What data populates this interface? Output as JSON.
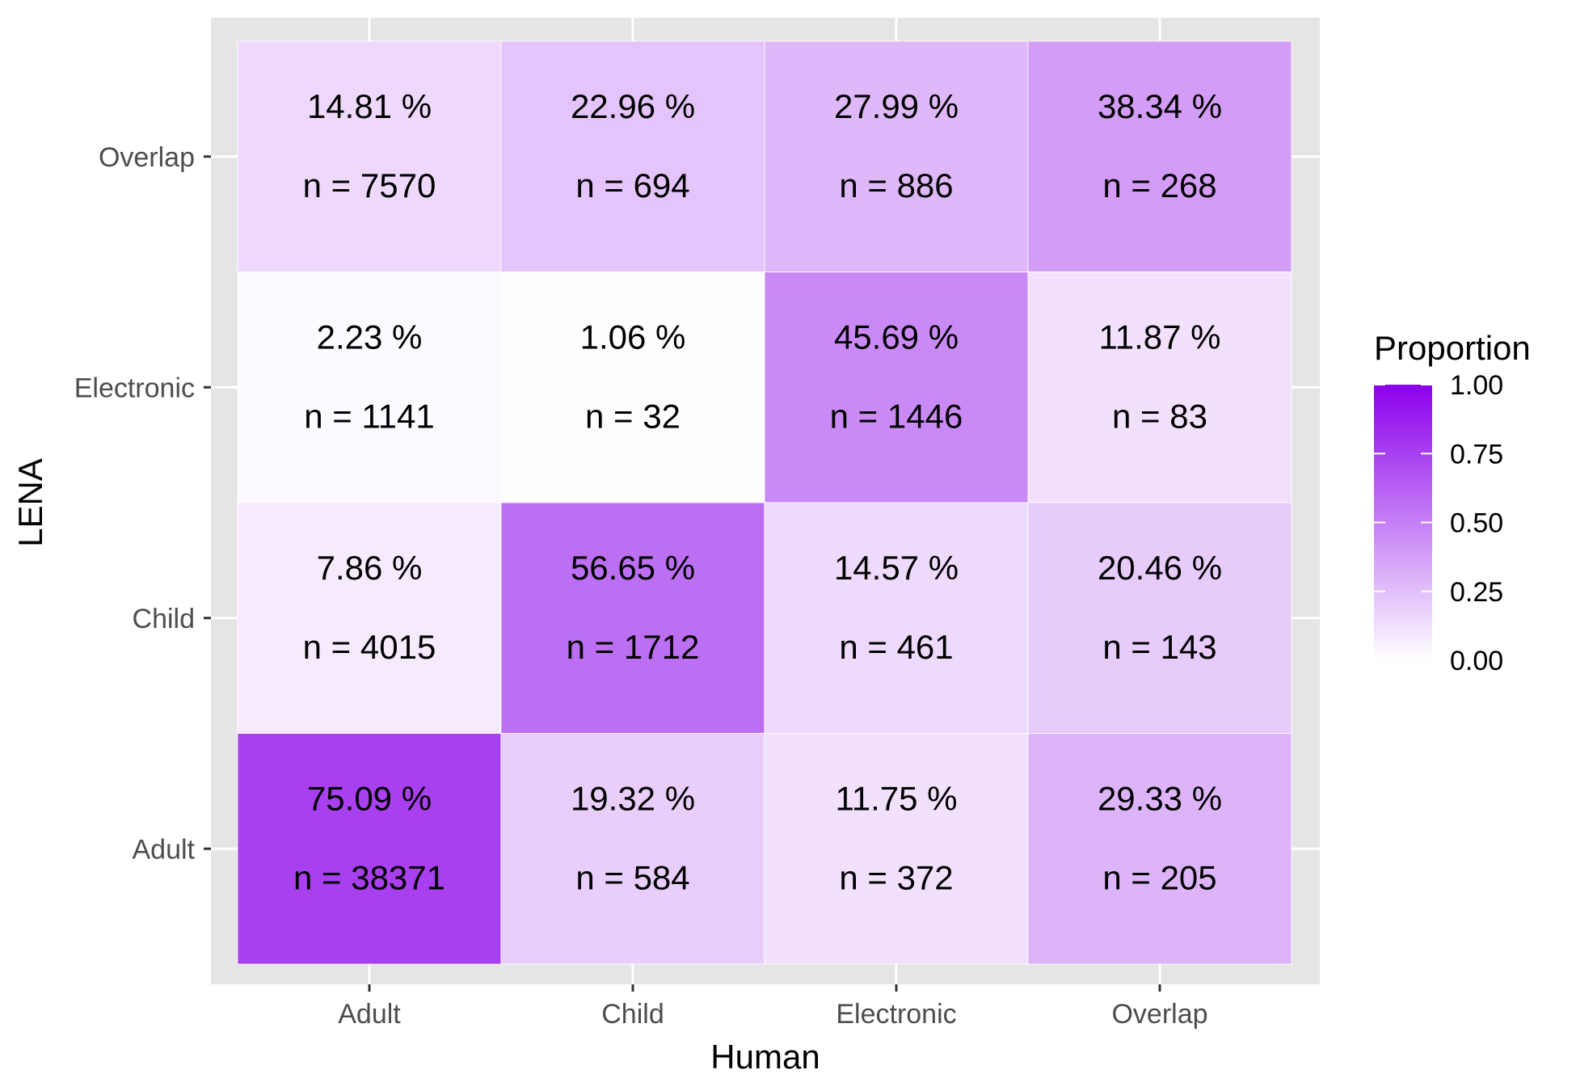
{
  "chart_data": {
    "type": "heatmap",
    "xlabel": "Human",
    "ylabel": "LENA",
    "x_categories": [
      "Adult",
      "Child",
      "Electronic",
      "Overlap"
    ],
    "y_categories": [
      "Adult",
      "Child",
      "Electronic",
      "Overlap"
    ],
    "cells": [
      {
        "x": "Adult",
        "y": "Overlap",
        "proportion": 0.1481,
        "pct_label": "14.81 %",
        "n_label": "n = 7570"
      },
      {
        "x": "Child",
        "y": "Overlap",
        "proportion": 0.2296,
        "pct_label": "22.96 %",
        "n_label": "n = 694"
      },
      {
        "x": "Electronic",
        "y": "Overlap",
        "proportion": 0.2799,
        "pct_label": "27.99 %",
        "n_label": "n = 886"
      },
      {
        "x": "Overlap",
        "y": "Overlap",
        "proportion": 0.3834,
        "pct_label": "38.34 %",
        "n_label": "n = 268"
      },
      {
        "x": "Adult",
        "y": "Electronic",
        "proportion": 0.0223,
        "pct_label": "2.23 %",
        "n_label": "n = 1141"
      },
      {
        "x": "Child",
        "y": "Electronic",
        "proportion": 0.0106,
        "pct_label": "1.06 %",
        "n_label": "n = 32"
      },
      {
        "x": "Electronic",
        "y": "Electronic",
        "proportion": 0.4569,
        "pct_label": "45.69 %",
        "n_label": "n = 1446"
      },
      {
        "x": "Overlap",
        "y": "Electronic",
        "proportion": 0.1187,
        "pct_label": "11.87 %",
        "n_label": "n = 83"
      },
      {
        "x": "Adult",
        "y": "Child",
        "proportion": 0.0786,
        "pct_label": "7.86 %",
        "n_label": "n = 4015"
      },
      {
        "x": "Child",
        "y": "Child",
        "proportion": 0.5665,
        "pct_label": "56.65 %",
        "n_label": "n = 1712"
      },
      {
        "x": "Electronic",
        "y": "Child",
        "proportion": 0.1457,
        "pct_label": "14.57 %",
        "n_label": "n = 461"
      },
      {
        "x": "Overlap",
        "y": "Child",
        "proportion": 0.2046,
        "pct_label": "20.46 %",
        "n_label": "n = 143"
      },
      {
        "x": "Adult",
        "y": "Adult",
        "proportion": 0.7509,
        "pct_label": "75.09 %",
        "n_label": "n = 38371"
      },
      {
        "x": "Child",
        "y": "Adult",
        "proportion": 0.1932,
        "pct_label": "19.32 %",
        "n_label": "n = 584"
      },
      {
        "x": "Electronic",
        "y": "Adult",
        "proportion": 0.1175,
        "pct_label": "11.75 %",
        "n_label": "n = 372"
      },
      {
        "x": "Overlap",
        "y": "Adult",
        "proportion": 0.2933,
        "pct_label": "29.33 %",
        "n_label": "n = 205"
      }
    ],
    "legend": {
      "title": "Proportion",
      "ticks": [
        "0.00",
        "0.25",
        "0.50",
        "0.75",
        "1.00"
      ],
      "tick_values": [
        0,
        0.25,
        0.5,
        0.75,
        1.0
      ],
      "range": [
        0,
        1
      ],
      "low_color": "#ffffff",
      "high_color": "#8b00eb",
      "placement": "right"
    },
    "colors": {
      "panel_background": "#e5e5e5",
      "grid": "#ffffff",
      "tick_text": "#4d4d4d"
    }
  }
}
